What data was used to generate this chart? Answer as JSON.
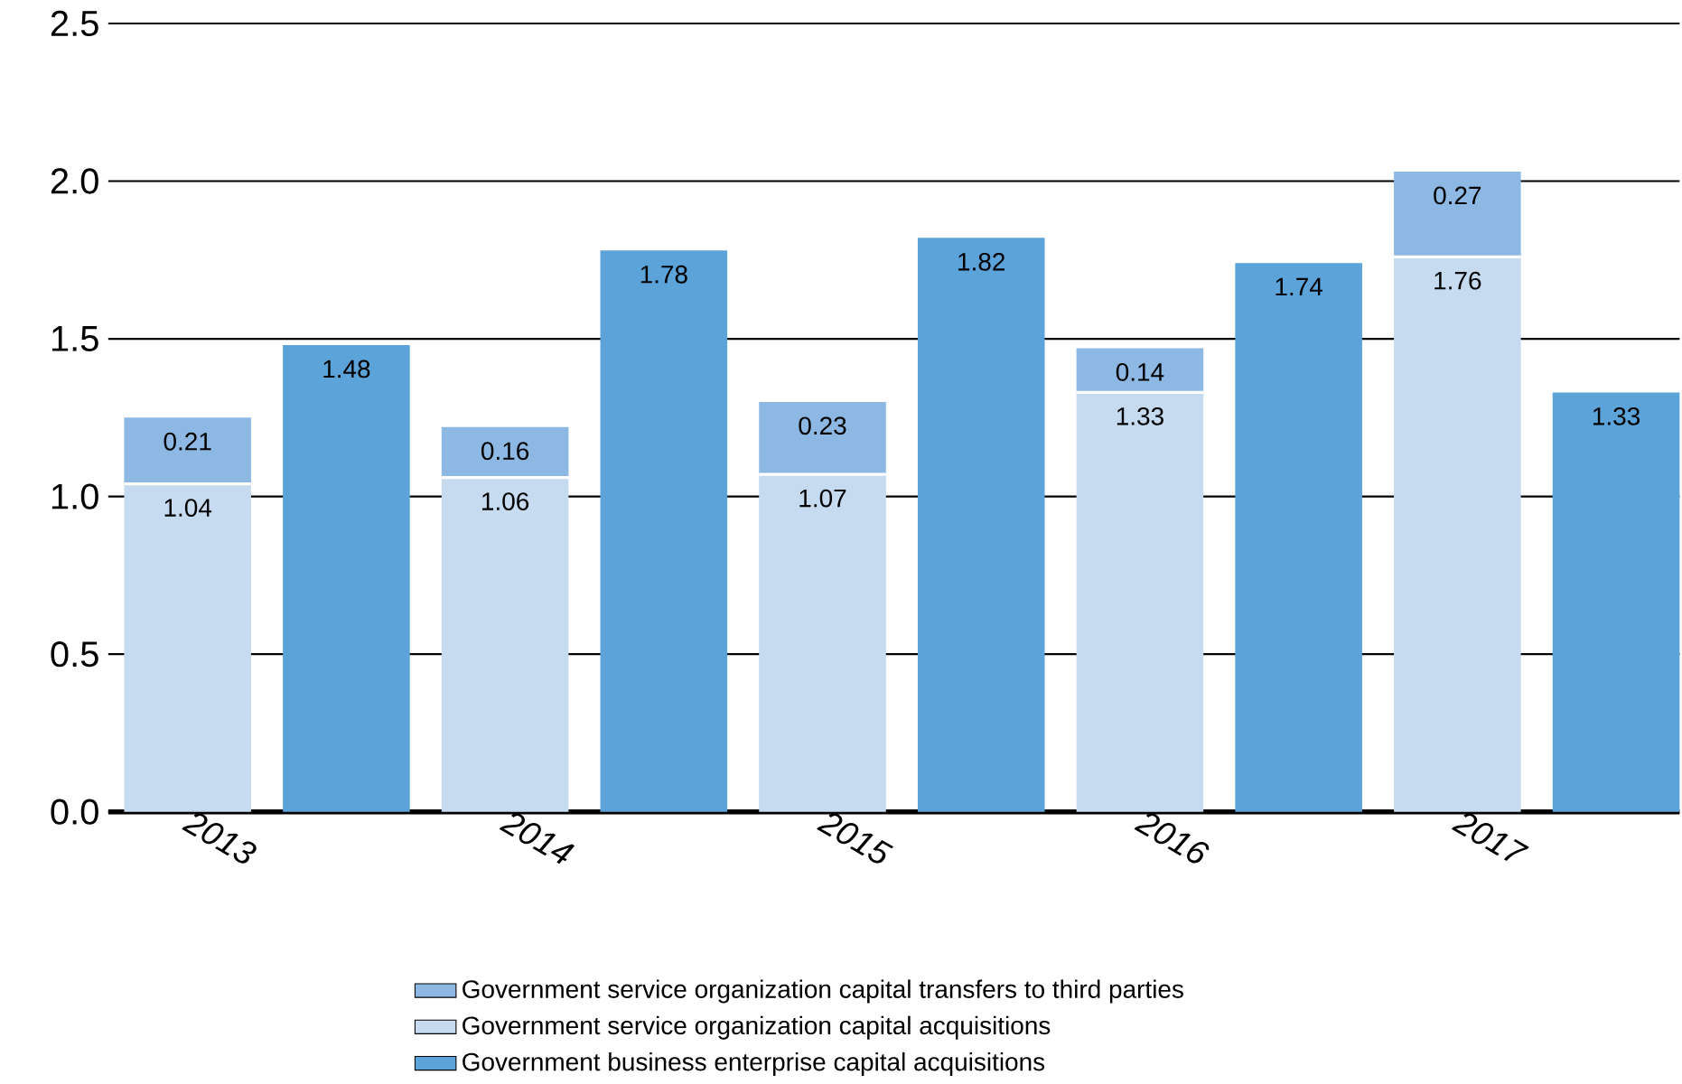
{
  "chart_data": {
    "type": "bar",
    "stacked": true,
    "categories": [
      "2013",
      null,
      "2014",
      null,
      "2015",
      null,
      "2016",
      null,
      "2017",
      null
    ],
    "series": [
      {
        "name": "Government business enterprise capital acquisitions",
        "color": "#5ba3d9",
        "values": [
          null,
          1.48,
          null,
          1.78,
          null,
          1.82,
          null,
          1.74,
          null,
          1.33
        ]
      },
      {
        "name": "Government service organization capital acquisitions",
        "color": "#c6daf0",
        "values": [
          1.04,
          null,
          1.06,
          null,
          1.07,
          null,
          1.33,
          null,
          1.76,
          null
        ]
      },
      {
        "name": "Government service organization capital transfers to third parties",
        "color": "#8db8e3",
        "values": [
          0.21,
          null,
          0.16,
          null,
          0.23,
          null,
          0.14,
          null,
          0.27,
          null
        ]
      }
    ],
    "ylim": [
      0,
      2.5
    ],
    "yticks": [
      {
        "value": 0,
        "label": "0.0"
      },
      {
        "value": 0.5,
        "label": "0.5"
      },
      {
        "value": 1,
        "label": "1.0"
      },
      {
        "value": 1.5,
        "label": "1.5"
      },
      {
        "value": 2,
        "label": "2.0"
      },
      {
        "value": 2.5,
        "label": "2.5"
      }
    ],
    "grid": "y",
    "legend": "bottom",
    "data_labels": true
  }
}
